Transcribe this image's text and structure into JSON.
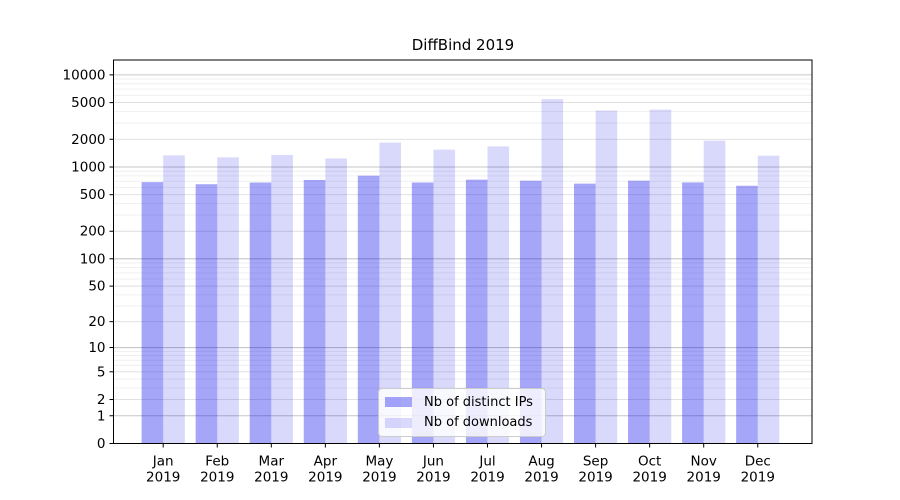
{
  "title": "DiffBind 2019",
  "chart_data": {
    "type": "bar",
    "title": "DiffBind 2019",
    "categories": [
      "Jan",
      "Feb",
      "Mar",
      "Apr",
      "May",
      "Jun",
      "Jul",
      "Aug",
      "Sep",
      "Oct",
      "Nov",
      "Dec"
    ],
    "x_second_line": "2019",
    "series": [
      {
        "id": "distinct-ips",
        "name": "Nb of distinct IPs",
        "color": "rgba(0,0,238,0.35)",
        "values": [
          685,
          650,
          678,
          722,
          805,
          678,
          728,
          710,
          660,
          710,
          680,
          625
        ]
      },
      {
        "id": "downloads",
        "name": "Nb of downloads",
        "color": "rgba(0,0,238,0.15)",
        "values": [
          1337,
          1272,
          1350,
          1239,
          1840,
          1542,
          1675,
          5450,
          4100,
          4200,
          1932,
          1327
        ]
      }
    ],
    "yscale": "log1p",
    "yticks": [
      0,
      1,
      2,
      5,
      10,
      20,
      50,
      100,
      200,
      500,
      1000,
      2000,
      5000,
      10000
    ],
    "ylim": [
      0,
      14500
    ],
    "grid": true,
    "legend_position": "lower center"
  },
  "colors": {
    "background": "#ffffff",
    "axis": "#000000",
    "grid_major": "#c6c6c6",
    "grid_mid": "#dddddd",
    "grid_minor": "#ececec",
    "legend_border": "#cccccc",
    "text": "#000000"
  }
}
